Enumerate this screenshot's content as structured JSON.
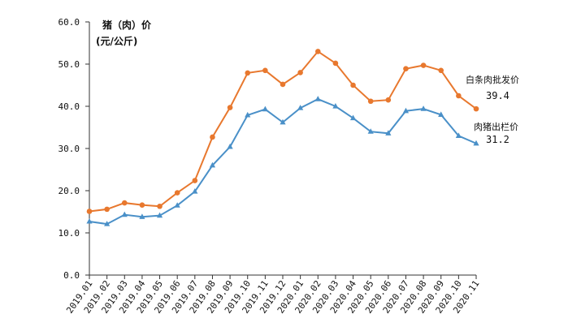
{
  "chart_data": {
    "type": "line",
    "ylabel_line1": "猪（肉）价",
    "ylabel_line2": "(元/公斤)",
    "ylim": [
      0,
      60
    ],
    "yticks": [
      "0.0",
      "10.0",
      "20.0",
      "30.0",
      "40.0",
      "50.0",
      "60.0"
    ],
    "grid": false,
    "categories": [
      "2019.01",
      "2019.02",
      "2019.03",
      "2019.04",
      "2019.05",
      "2019.06",
      "2019.07",
      "2019.08",
      "2019.09",
      "2019.10",
      "2019.11",
      "2019.12",
      "2020.01",
      "2020.02",
      "2020.03",
      "2020.04",
      "2020.05",
      "2020.06",
      "2020.07",
      "2020.08",
      "2020.09",
      "2020.10",
      "2020.11"
    ],
    "series": [
      {
        "name": "白条肉批发价",
        "color": "#E8782E",
        "marker": "circle",
        "end_label": "39.4",
        "values": [
          15.1,
          15.6,
          17.1,
          16.6,
          16.3,
          19.5,
          22.4,
          32.7,
          39.7,
          47.9,
          48.5,
          45.2,
          48.0,
          53.0,
          50.2,
          45.0,
          41.2,
          41.5,
          48.9,
          49.7,
          48.5,
          42.5,
          39.4
        ]
      },
      {
        "name": "肉猪出栏价",
        "color": "#4A90C8",
        "marker": "triangle",
        "end_label": "31.2",
        "values": [
          12.7,
          12.1,
          14.3,
          13.8,
          14.1,
          16.5,
          19.8,
          26.0,
          30.4,
          37.9,
          39.3,
          36.2,
          39.6,
          41.7,
          40.0,
          37.2,
          34.0,
          33.6,
          38.9,
          39.4,
          38.0,
          33.0,
          31.2
        ]
      }
    ]
  }
}
